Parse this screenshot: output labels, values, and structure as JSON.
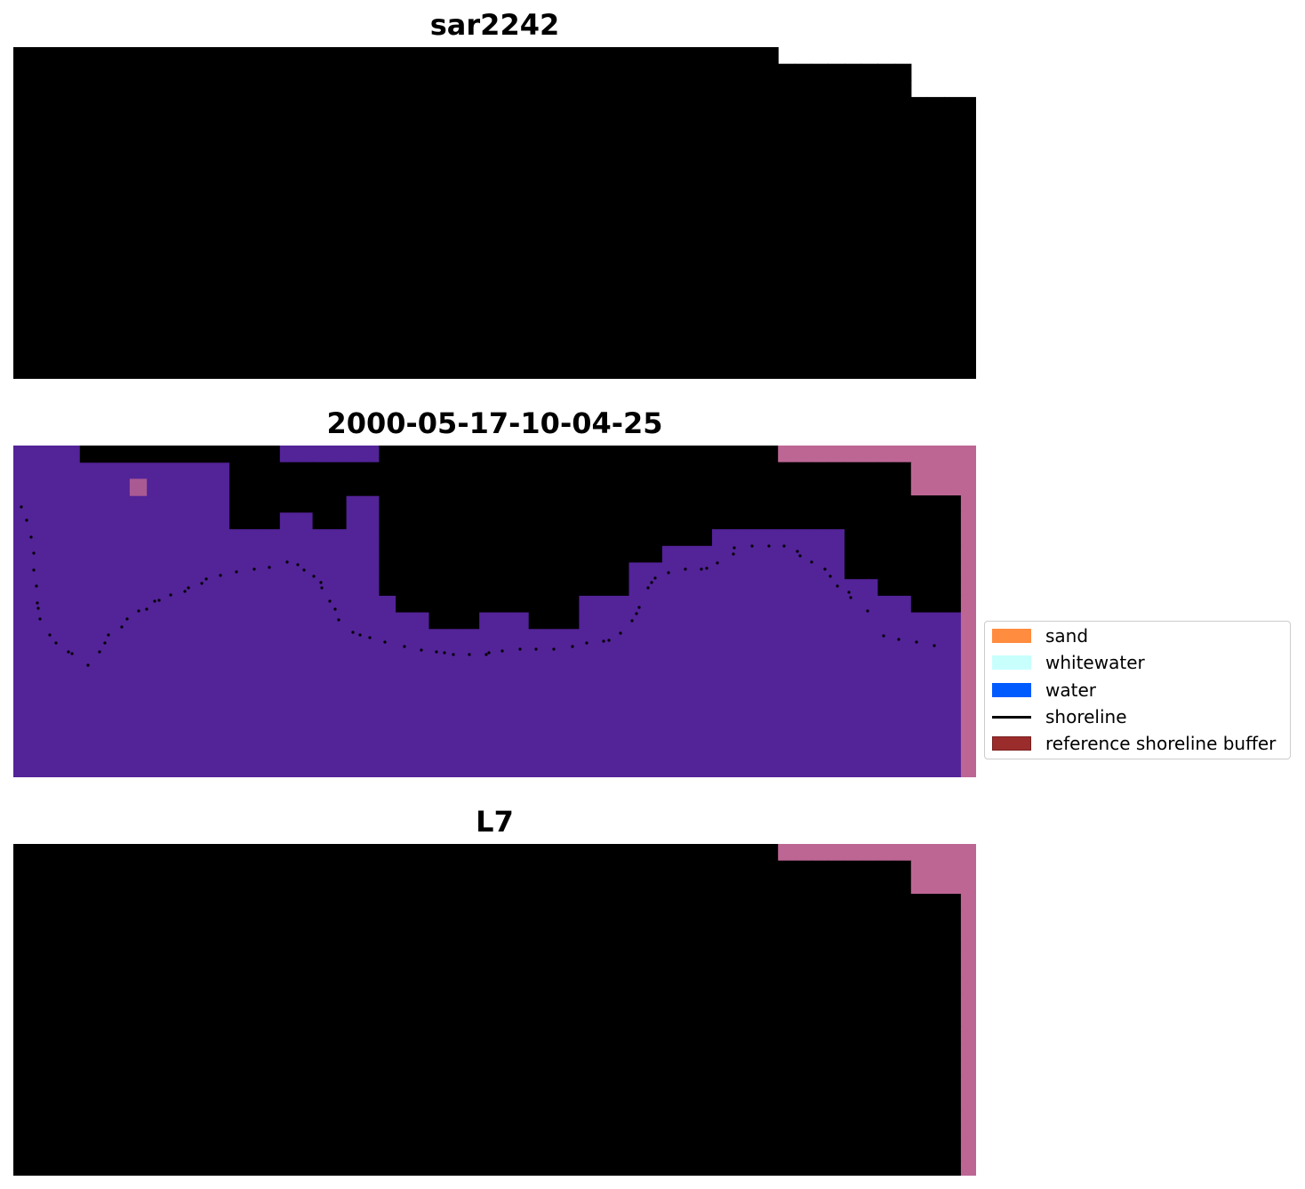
{
  "panels": [
    {
      "title": "sar2242",
      "kind": "rgb"
    },
    {
      "title": "2000-05-17-10-04-25",
      "kind": "classified"
    },
    {
      "title": "L7",
      "kind": "index"
    }
  ],
  "legend": {
    "items": [
      {
        "label": "sand",
        "color": "#ff8c3f",
        "type": "patch"
      },
      {
        "label": "whitewater",
        "color": "#c8fffd",
        "type": "patch"
      },
      {
        "label": "water",
        "color": "#005bff",
        "type": "patch"
      },
      {
        "label": "shoreline",
        "color": "#000000",
        "type": "line"
      },
      {
        "label": "reference shoreline buffer",
        "color": "#9b2c2c",
        "type": "patch"
      }
    ]
  },
  "colors": {
    "no_data": "#bd6694",
    "water_class": "#532398",
    "land_class": "#aa5a92",
    "index_high": "#c20a37",
    "index_low": "#6a139d"
  }
}
